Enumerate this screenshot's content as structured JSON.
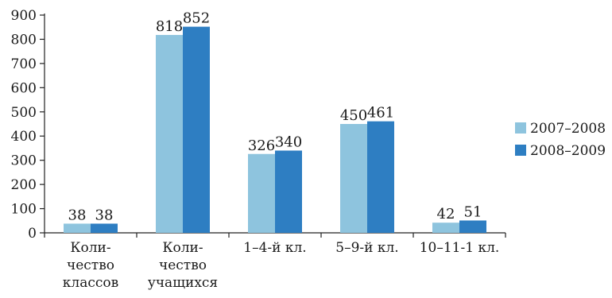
{
  "chart_data": {
    "type": "bar",
    "categories": [
      [
        "Коли-",
        "чество",
        "классов"
      ],
      [
        "Коли-",
        "чество",
        "учащихся"
      ],
      [
        "1–4-й кл."
      ],
      [
        "5–9-й кл."
      ],
      [
        "10–11-1 кл."
      ]
    ],
    "series": [
      {
        "name": "2007–2008",
        "color": "#8ec4de",
        "values": [
          38,
          818,
          326,
          450,
          42
        ]
      },
      {
        "name": "2008–2009",
        "color": "#2e7ec2",
        "values": [
          38,
          852,
          340,
          461,
          51
        ]
      }
    ],
    "ylim": [
      0,
      900
    ],
    "yticks": [
      "0",
      "100",
      "200",
      "300",
      "400",
      "500",
      "600",
      "700",
      "800",
      "900"
    ],
    "legend_position": "right",
    "grid": false
  }
}
